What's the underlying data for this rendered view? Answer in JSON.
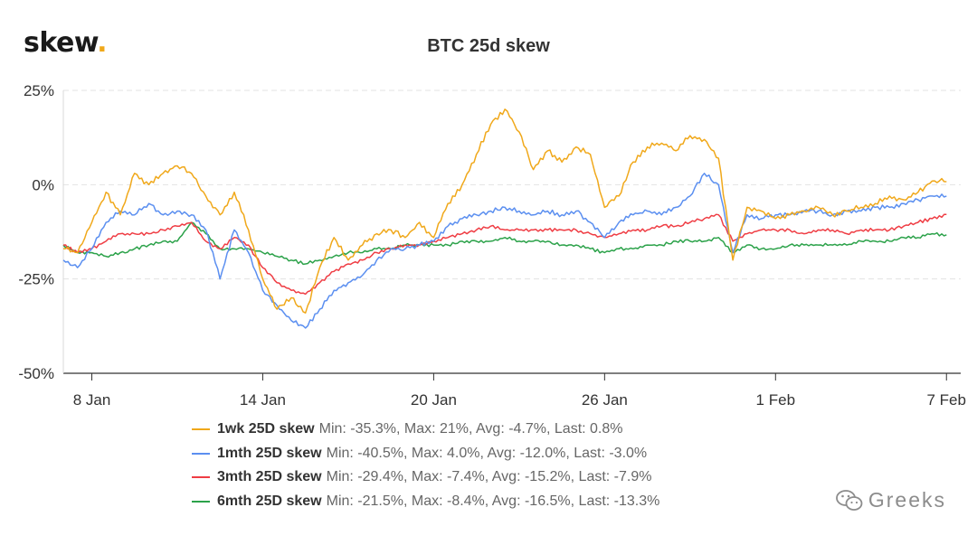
{
  "header": {
    "logo_text": "skew",
    "logo_dot": ".",
    "title": "BTC 25d skew"
  },
  "watermark": {
    "text": "Greeks",
    "icon": "wechat-icon"
  },
  "colors": {
    "orange": "#f0a81a",
    "blue": "#5b8ff0",
    "red": "#ef3d44",
    "green": "#2ca24a",
    "grid": "#e3e3e3",
    "axis": "#333333"
  },
  "chart_data": {
    "type": "line",
    "title": "BTC 25d skew",
    "xlabel": "",
    "ylabel": "",
    "x_axis": {
      "start": "2021-01-07",
      "end": "2021-02-07",
      "ticks": [
        "8 Jan",
        "14 Jan",
        "20 Jan",
        "26 Jan",
        "1 Feb",
        "7 Feb"
      ]
    },
    "y_axis": {
      "ticks": [
        "25%",
        "0%",
        "-25%",
        "-50%"
      ],
      "ylim": [
        -50,
        25
      ]
    },
    "grid": "horizontal dashed",
    "legend_position": "bottom",
    "series": [
      {
        "name": "1wk 25D skew",
        "color": "#f0a81a",
        "stats": "Min: -35.3%, Max: 21%, Avg: -4.7%, Last: 0.8%",
        "points": [
          [
            "2021-01-07",
            -17
          ],
          [
            "2021-01-07T12:00",
            -18
          ],
          [
            "2021-01-08",
            -10
          ],
          [
            "2021-01-08T12:00",
            -2
          ],
          [
            "2021-01-09",
            -8
          ],
          [
            "2021-01-09T12:00",
            3
          ],
          [
            "2021-01-10",
            0
          ],
          [
            "2021-01-10T12:00",
            3
          ],
          [
            "2021-01-11",
            5
          ],
          [
            "2021-01-11T12:00",
            3
          ],
          [
            "2021-01-12",
            -3
          ],
          [
            "2021-01-12T12:00",
            -8
          ],
          [
            "2021-01-13",
            -2
          ],
          [
            "2021-01-13T12:00",
            -12
          ],
          [
            "2021-01-14",
            -25
          ],
          [
            "2021-01-14T12:00",
            -33
          ],
          [
            "2021-01-15",
            -30
          ],
          [
            "2021-01-15T12:00",
            -34
          ],
          [
            "2021-01-16",
            -22
          ],
          [
            "2021-01-16T12:00",
            -14
          ],
          [
            "2021-01-17",
            -20
          ],
          [
            "2021-01-17T12:00",
            -16
          ],
          [
            "2021-01-18",
            -13
          ],
          [
            "2021-01-18T12:00",
            -12
          ],
          [
            "2021-01-19",
            -14
          ],
          [
            "2021-01-19T12:00",
            -10
          ],
          [
            "2021-01-20",
            -14
          ],
          [
            "2021-01-20T12:00",
            -5
          ],
          [
            "2021-01-21",
            0
          ],
          [
            "2021-01-21T12:00",
            8
          ],
          [
            "2021-01-22",
            16
          ],
          [
            "2021-01-22T12:00",
            20
          ],
          [
            "2021-01-23",
            14
          ],
          [
            "2021-01-23T12:00",
            4
          ],
          [
            "2021-01-24",
            9
          ],
          [
            "2021-01-24T12:00",
            6
          ],
          [
            "2021-01-25",
            10
          ],
          [
            "2021-01-25T12:00",
            8
          ],
          [
            "2021-01-26",
            -6
          ],
          [
            "2021-01-26T12:00",
            -3
          ],
          [
            "2021-01-27",
            6
          ],
          [
            "2021-01-27T12:00",
            10
          ],
          [
            "2021-01-28",
            11
          ],
          [
            "2021-01-28T12:00",
            9
          ],
          [
            "2021-01-29",
            13
          ],
          [
            "2021-01-29T12:00",
            12
          ],
          [
            "2021-01-30",
            7
          ],
          [
            "2021-01-30T12:00",
            -20
          ],
          [
            "2021-01-31",
            -6
          ],
          [
            "2021-01-31T12:00",
            -7
          ],
          [
            "2021-02-01",
            -9
          ],
          [
            "2021-02-01T12:00",
            -8
          ],
          [
            "2021-02-02",
            -7
          ],
          [
            "2021-02-02T12:00",
            -6
          ],
          [
            "2021-02-03",
            -8
          ],
          [
            "2021-02-03T12:00",
            -7
          ],
          [
            "2021-02-04",
            -6
          ],
          [
            "2021-02-04T12:00",
            -5
          ],
          [
            "2021-02-05",
            -3
          ],
          [
            "2021-02-05T12:00",
            -4
          ],
          [
            "2021-02-06",
            -2
          ],
          [
            "2021-02-06T12:00",
            1
          ],
          [
            "2021-02-07",
            0.8
          ]
        ]
      },
      {
        "name": "1mth 25D skew",
        "color": "#5b8ff0",
        "stats": "Min: -40.5%, Max: 4.0%, Avg: -12.0%, Last: -3.0%",
        "points": [
          [
            "2021-01-07",
            -20
          ],
          [
            "2021-01-07T12:00",
            -22
          ],
          [
            "2021-01-08",
            -17
          ],
          [
            "2021-01-08T12:00",
            -10
          ],
          [
            "2021-01-09",
            -7
          ],
          [
            "2021-01-09T12:00",
            -8
          ],
          [
            "2021-01-10",
            -5
          ],
          [
            "2021-01-10T12:00",
            -8
          ],
          [
            "2021-01-11",
            -7
          ],
          [
            "2021-01-11T12:00",
            -8
          ],
          [
            "2021-01-12",
            -12
          ],
          [
            "2021-01-12T12:00",
            -25
          ],
          [
            "2021-01-13",
            -12
          ],
          [
            "2021-01-13T12:00",
            -18
          ],
          [
            "2021-01-14",
            -28
          ],
          [
            "2021-01-14T12:00",
            -32
          ],
          [
            "2021-01-15",
            -36
          ],
          [
            "2021-01-15T12:00",
            -38
          ],
          [
            "2021-01-16",
            -33
          ],
          [
            "2021-01-16T12:00",
            -28
          ],
          [
            "2021-01-17",
            -26
          ],
          [
            "2021-01-17T12:00",
            -24
          ],
          [
            "2021-01-18",
            -20
          ],
          [
            "2021-01-18T12:00",
            -17
          ],
          [
            "2021-01-19",
            -17
          ],
          [
            "2021-01-19T12:00",
            -16
          ],
          [
            "2021-01-20",
            -15
          ],
          [
            "2021-01-20T12:00",
            -11
          ],
          [
            "2021-01-21",
            -9
          ],
          [
            "2021-01-21T12:00",
            -8
          ],
          [
            "2021-01-22",
            -7
          ],
          [
            "2021-01-22T12:00",
            -6
          ],
          [
            "2021-01-23",
            -7
          ],
          [
            "2021-01-23T12:00",
            -8
          ],
          [
            "2021-01-24",
            -7
          ],
          [
            "2021-01-24T12:00",
            -8
          ],
          [
            "2021-01-25",
            -7
          ],
          [
            "2021-01-25T12:00",
            -10
          ],
          [
            "2021-01-26",
            -14
          ],
          [
            "2021-01-26T12:00",
            -10
          ],
          [
            "2021-01-27",
            -8
          ],
          [
            "2021-01-27T12:00",
            -7
          ],
          [
            "2021-01-28",
            -8
          ],
          [
            "2021-01-28T12:00",
            -6
          ],
          [
            "2021-01-29",
            -3
          ],
          [
            "2021-01-29T12:00",
            3
          ],
          [
            "2021-01-30",
            0
          ],
          [
            "2021-01-30T12:00",
            -18
          ],
          [
            "2021-01-31",
            -8
          ],
          [
            "2021-01-31T12:00",
            -9
          ],
          [
            "2021-02-01",
            -8
          ],
          [
            "2021-02-01T12:00",
            -8
          ],
          [
            "2021-02-02",
            -7
          ],
          [
            "2021-02-02T12:00",
            -7
          ],
          [
            "2021-02-03",
            -8
          ],
          [
            "2021-02-03T12:00",
            -7
          ],
          [
            "2021-02-04",
            -7
          ],
          [
            "2021-02-04T12:00",
            -6
          ],
          [
            "2021-02-05",
            -6
          ],
          [
            "2021-02-05T12:00",
            -5
          ],
          [
            "2021-02-06",
            -4
          ],
          [
            "2021-02-06T12:00",
            -3
          ],
          [
            "2021-02-07",
            -3
          ]
        ]
      },
      {
        "name": "3mth 25D skew",
        "color": "#ef3d44",
        "stats": "Min: -29.4%, Max: -7.4%, Avg: -15.2%, Last: -7.9%",
        "points": [
          [
            "2021-01-07",
            -16
          ],
          [
            "2021-01-07T12:00",
            -18
          ],
          [
            "2021-01-08",
            -17
          ],
          [
            "2021-01-08T12:00",
            -15
          ],
          [
            "2021-01-09",
            -13
          ],
          [
            "2021-01-09T12:00",
            -13
          ],
          [
            "2021-01-10",
            -13
          ],
          [
            "2021-01-10T12:00",
            -12
          ],
          [
            "2021-01-11",
            -11
          ],
          [
            "2021-01-11T12:00",
            -10
          ],
          [
            "2021-01-12",
            -15
          ],
          [
            "2021-01-12T12:00",
            -17
          ],
          [
            "2021-01-13",
            -14
          ],
          [
            "2021-01-13T12:00",
            -16
          ],
          [
            "2021-01-14",
            -22
          ],
          [
            "2021-01-14T12:00",
            -26
          ],
          [
            "2021-01-15",
            -28
          ],
          [
            "2021-01-15T12:00",
            -29
          ],
          [
            "2021-01-16",
            -26
          ],
          [
            "2021-01-16T12:00",
            -23
          ],
          [
            "2021-01-17",
            -21
          ],
          [
            "2021-01-17T12:00",
            -20
          ],
          [
            "2021-01-18",
            -18
          ],
          [
            "2021-01-18T12:00",
            -17
          ],
          [
            "2021-01-19",
            -16
          ],
          [
            "2021-01-19T12:00",
            -16
          ],
          [
            "2021-01-20",
            -15
          ],
          [
            "2021-01-20T12:00",
            -14
          ],
          [
            "2021-01-21",
            -13
          ],
          [
            "2021-01-21T12:00",
            -12
          ],
          [
            "2021-01-22",
            -11
          ],
          [
            "2021-01-22T12:00",
            -12
          ],
          [
            "2021-01-23",
            -12
          ],
          [
            "2021-01-23T12:00",
            -12
          ],
          [
            "2021-01-24",
            -12
          ],
          [
            "2021-01-24T12:00",
            -12
          ],
          [
            "2021-01-25",
            -12
          ],
          [
            "2021-01-25T12:00",
            -13
          ],
          [
            "2021-01-26",
            -14
          ],
          [
            "2021-01-26T12:00",
            -13
          ],
          [
            "2021-01-27",
            -12
          ],
          [
            "2021-01-27T12:00",
            -12
          ],
          [
            "2021-01-28",
            -11
          ],
          [
            "2021-01-28T12:00",
            -11
          ],
          [
            "2021-01-29",
            -10
          ],
          [
            "2021-01-29T12:00",
            -9
          ],
          [
            "2021-01-30",
            -8
          ],
          [
            "2021-01-30T12:00",
            -15
          ],
          [
            "2021-01-31",
            -13
          ],
          [
            "2021-01-31T12:00",
            -12
          ],
          [
            "2021-02-01",
            -12
          ],
          [
            "2021-02-01T12:00",
            -12
          ],
          [
            "2021-02-02",
            -13
          ],
          [
            "2021-02-02T12:00",
            -12
          ],
          [
            "2021-02-03",
            -12
          ],
          [
            "2021-02-03T12:00",
            -13
          ],
          [
            "2021-02-04",
            -12
          ],
          [
            "2021-02-04T12:00",
            -12
          ],
          [
            "2021-02-05",
            -12
          ],
          [
            "2021-02-05T12:00",
            -11
          ],
          [
            "2021-02-06",
            -10
          ],
          [
            "2021-02-06T12:00",
            -9
          ],
          [
            "2021-02-07",
            -7.9
          ]
        ]
      },
      {
        "name": "6mth 25D skew",
        "color": "#2ca24a",
        "stats": "Min: -21.5%, Max: -8.4%, Avg: -16.5%, Last: -13.3%",
        "points": [
          [
            "2021-01-07",
            -16
          ],
          [
            "2021-01-07T12:00",
            -18
          ],
          [
            "2021-01-08",
            -18
          ],
          [
            "2021-01-08T12:00",
            -19
          ],
          [
            "2021-01-09",
            -18
          ],
          [
            "2021-01-09T12:00",
            -17
          ],
          [
            "2021-01-10",
            -16
          ],
          [
            "2021-01-10T12:00",
            -15
          ],
          [
            "2021-01-11",
            -15
          ],
          [
            "2021-01-11T12:00",
            -10
          ],
          [
            "2021-01-12",
            -13
          ],
          [
            "2021-01-12T12:00",
            -17
          ],
          [
            "2021-01-13",
            -17
          ],
          [
            "2021-01-13T12:00",
            -17
          ],
          [
            "2021-01-14",
            -18
          ],
          [
            "2021-01-14T12:00",
            -19
          ],
          [
            "2021-01-15",
            -20
          ],
          [
            "2021-01-15T12:00",
            -21
          ],
          [
            "2021-01-16",
            -20
          ],
          [
            "2021-01-16T12:00",
            -19
          ],
          [
            "2021-01-17",
            -18
          ],
          [
            "2021-01-17T12:00",
            -18
          ],
          [
            "2021-01-18",
            -17
          ],
          [
            "2021-01-18T12:00",
            -17
          ],
          [
            "2021-01-19",
            -16
          ],
          [
            "2021-01-19T12:00",
            -16
          ],
          [
            "2021-01-20",
            -16
          ],
          [
            "2021-01-20T12:00",
            -16
          ],
          [
            "2021-01-21",
            -15
          ],
          [
            "2021-01-21T12:00",
            -15
          ],
          [
            "2021-01-22",
            -15
          ],
          [
            "2021-01-22T12:00",
            -14
          ],
          [
            "2021-01-23",
            -15
          ],
          [
            "2021-01-23T12:00",
            -15
          ],
          [
            "2021-01-24",
            -15
          ],
          [
            "2021-01-24T12:00",
            -16
          ],
          [
            "2021-01-25",
            -16
          ],
          [
            "2021-01-25T12:00",
            -17
          ],
          [
            "2021-01-26",
            -18
          ],
          [
            "2021-01-26T12:00",
            -17
          ],
          [
            "2021-01-27",
            -17
          ],
          [
            "2021-01-27T12:00",
            -16
          ],
          [
            "2021-01-28",
            -16
          ],
          [
            "2021-01-28T12:00",
            -15
          ],
          [
            "2021-01-29",
            -15
          ],
          [
            "2021-01-29T12:00",
            -15
          ],
          [
            "2021-01-30",
            -14
          ],
          [
            "2021-01-30T12:00",
            -18
          ],
          [
            "2021-01-31",
            -16
          ],
          [
            "2021-01-31T12:00",
            -17
          ],
          [
            "2021-02-01",
            -17
          ],
          [
            "2021-02-01T12:00",
            -16
          ],
          [
            "2021-02-02",
            -16
          ],
          [
            "2021-02-02T12:00",
            -16
          ],
          [
            "2021-02-03",
            -16
          ],
          [
            "2021-02-03T12:00",
            -16
          ],
          [
            "2021-02-04",
            -15
          ],
          [
            "2021-02-04T12:00",
            -15
          ],
          [
            "2021-02-05",
            -15
          ],
          [
            "2021-02-05T12:00",
            -14
          ],
          [
            "2021-02-06",
            -14
          ],
          [
            "2021-02-06T12:00",
            -13
          ],
          [
            "2021-02-07",
            -13.3
          ]
        ]
      }
    ]
  }
}
